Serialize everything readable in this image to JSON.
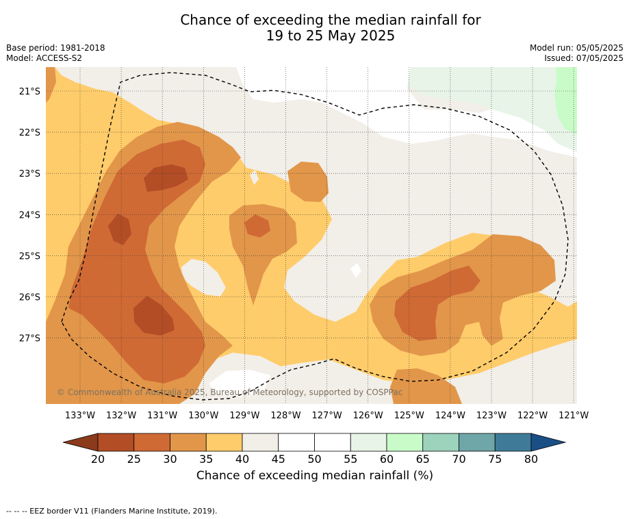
{
  "header": {
    "title": "Chance of exceeding the median rainfall for\n19 to 25 May 2025",
    "base_period": "Base period: 1981-2018",
    "model": "Model: ACCESS-S2",
    "model_run": "Model run: 05/05/2025",
    "issued": "Issued: 07/05/2025"
  },
  "map": {
    "copyright": "© Commonwealth of Australia 2025, Bureau of Meteorology, supported by COSPPac",
    "lon_labels": [
      "133°W",
      "132°W",
      "131°W",
      "130°W",
      "129°W",
      "128°W",
      "127°W",
      "126°W",
      "125°W",
      "124°W",
      "123°W",
      "122°W",
      "121°W"
    ],
    "lat_labels": [
      "21°S",
      "22°S",
      "23°S",
      "24°S",
      "25°S",
      "26°S",
      "27°S"
    ],
    "colors": {
      "20-25": "#B34D26",
      "25-30": "#D06A35",
      "30-35": "#E2964A",
      "35-40": "#FECC6A",
      "40-45": "#F2EEE8",
      "45-55": "#FFFFFF",
      "55-60": "#E8F4E8",
      "60-65": "#C9FBC8",
      "eez": "#000000"
    }
  },
  "colorbar": {
    "ticks": [
      "20",
      "25",
      "30",
      "35",
      "40",
      "45",
      "50",
      "55",
      "60",
      "65",
      "70",
      "75",
      "80"
    ],
    "colors": [
      "#B34D26",
      "#D06A35",
      "#E2964A",
      "#FECC6A",
      "#F2EEE8",
      "#FFFFFF",
      "#FFFFFF",
      "#E8F4E8",
      "#C9FBC8",
      "#9DD2BC",
      "#6FA6A8",
      "#3F7B99"
    ],
    "under_color": "#8C3A1C",
    "over_color": "#1A4F86",
    "label": "Chance of exceeding median rainfall (%)"
  },
  "footer": {
    "eez_note": "--  --  -- EEZ border V11 (Flanders Marine Institute, 2019)."
  }
}
